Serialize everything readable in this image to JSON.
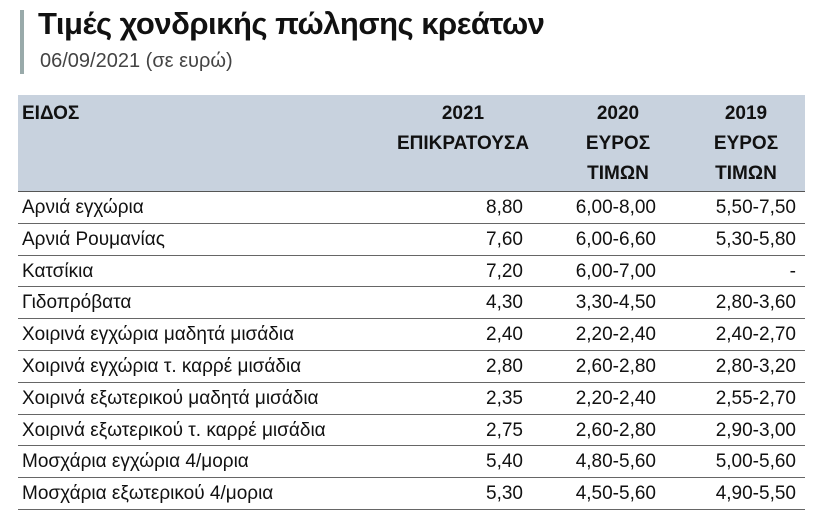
{
  "header": {
    "title": "Τιμές χονδρικής πώλησης κρεάτων",
    "subtitle": "06/09/2021 (σε ευρώ)"
  },
  "table": {
    "columns": [
      [
        "ΕΙΔΟΣ"
      ],
      [
        "2021",
        "ΕΠΙΚΡΑΤΟΥΣΑ"
      ],
      [
        "2020",
        "ΕΥΡΟΣ",
        "ΤΙΜΩΝ"
      ],
      [
        "2019",
        "ΕΥΡΟΣ",
        "ΤΙΜΩΝ"
      ]
    ],
    "rows": [
      [
        "Αρνιά εγχώρια",
        "8,80",
        "6,00-8,00",
        "5,50-7,50"
      ],
      [
        "Αρνιά Ρουμανίας",
        "7,60",
        "6,00-6,60",
        "5,30-5,80"
      ],
      [
        "Κατσίκια",
        "7,20",
        "6,00-7,00",
        "-"
      ],
      [
        "Γιδοπρόβατα",
        "4,30",
        "3,30-4,50",
        "2,80-3,60"
      ],
      [
        "Χοιρινά εγχώρια μαδητά μισάδια",
        "2,40",
        "2,20-2,40",
        "2,40-2,70"
      ],
      [
        "Χοιρινά εγχώρια τ. καρρέ μισάδια",
        "2,80",
        "2,60-2,80",
        "2,80-3,20"
      ],
      [
        "Χοιρινά εξωτερικού μαδητά μισάδια",
        "2,35",
        "2,20-2,40",
        "2,55-2,70"
      ],
      [
        "Χοιρινά εξωτερικού τ. καρρέ μισάδια",
        "2,75",
        "2,60-2,80",
        "2,90-3,00"
      ],
      [
        "Μοσχάρια εγχώρια 4/μορια",
        "5,40",
        "4,80-5,60",
        "5,00-5,60"
      ],
      [
        "Μοσχάρια εξωτερικού 4/μορια",
        "5,30",
        "4,50-5,60",
        "4,90-5,50"
      ]
    ]
  }
}
